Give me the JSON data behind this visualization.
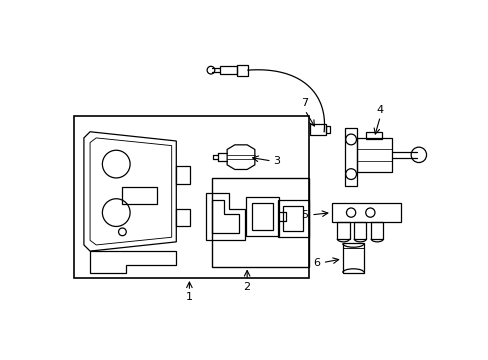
{
  "bg_color": "#ffffff",
  "line_color": "#000000",
  "fig_width": 4.89,
  "fig_height": 3.6,
  "dpi": 100,
  "label_fontsize": 8
}
